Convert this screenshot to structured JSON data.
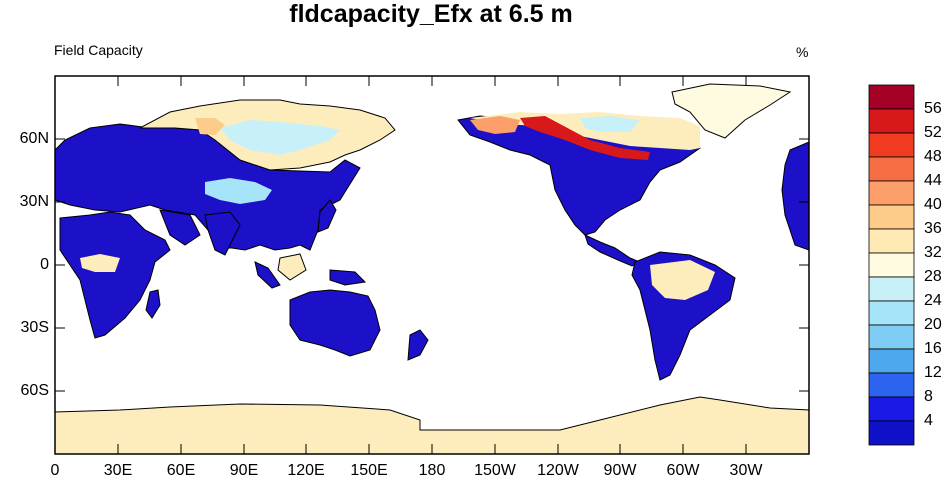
{
  "title": "fldcapacity_Efx at 6.5 m",
  "subtitle": "Field Capacity",
  "units": "%",
  "map": {
    "projection": "cylindrical-equidistant",
    "center_longitude": 180,
    "lat_ticks": [
      "60N",
      "30N",
      "0",
      "30S",
      "60S"
    ],
    "lon_ticks": [
      "0",
      "30E",
      "60E",
      "90E",
      "120E",
      "150E",
      "180",
      "150W",
      "120W",
      "90W",
      "60W",
      "30W"
    ],
    "ocean_color": "#ffffff"
  },
  "colorbar": {
    "labels": [
      "56",
      "52",
      "48",
      "44",
      "40",
      "36",
      "32",
      "28",
      "24",
      "20",
      "16",
      "12",
      "8",
      "4"
    ],
    "colors": [
      "#a50026",
      "#d7191c",
      "#f03b20",
      "#f46d43",
      "#fc9f6b",
      "#fdcc8a",
      "#feeab2",
      "#fffbe0",
      "#c8f0f8",
      "#a6e4fa",
      "#7fcdf5",
      "#4ea8ee",
      "#2c64f0",
      "#1a1ae6",
      "#1010c8"
    ]
  }
}
